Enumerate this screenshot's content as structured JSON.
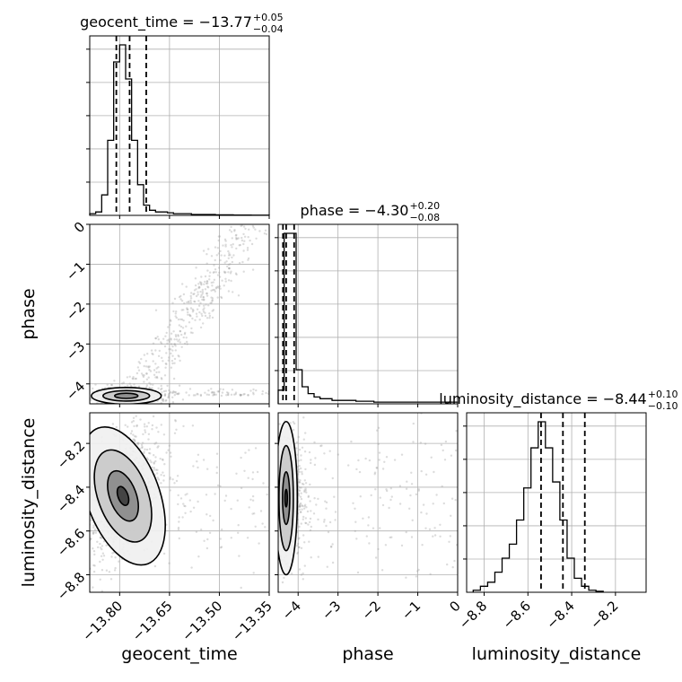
{
  "chart_data": {
    "type": "corner",
    "colors": {
      "line": "#000000",
      "grid": "#b0b0b0",
      "scatter": "#9a9a9a",
      "contour_fill": [
        "#f0f0f0",
        "#c8c8c8",
        "#8a8a8a",
        "#3c3c3c"
      ]
    },
    "parameters": [
      {
        "name": "geocent_time",
        "label": "geocent_time",
        "title": {
          "prefix": "geocent_time = ",
          "value": "−13.77",
          "plus": "+0.05",
          "minus": "−0.04"
        },
        "range": [
          -13.89,
          -13.35
        ],
        "ticks": [
          -13.8,
          -13.65,
          -13.5,
          -13.35
        ],
        "tick_labels": [
          "−13.80",
          "−13.65",
          "−13.50",
          "−13.35"
        ],
        "quantiles": [
          -13.81,
          -13.77,
          -13.72
        ],
        "hist": {
          "edges_start": -13.89,
          "bin_width": 0.018,
          "counts": [
            1,
            2,
            12,
            44,
            90,
            100,
            80,
            44,
            18,
            6,
            3,
            2,
            2,
            1.5,
            1,
            1,
            1,
            0.5,
            0.5,
            0.5,
            0.5,
            0.3,
            0.3,
            0.3,
            0.2,
            0.2,
            0.2,
            0.1,
            0.1,
            0.1
          ]
        }
      },
      {
        "name": "phase",
        "label": "phase",
        "title": {
          "prefix": "phase = ",
          "value": "−4.30",
          "plus": "+0.20",
          "minus": "−0.08"
        },
        "range": [
          -4.5,
          0
        ],
        "ticks": [
          -4,
          -3,
          -2,
          -1,
          0
        ],
        "tick_labels": [
          "−4",
          "−3",
          "−2",
          "−1",
          "0"
        ],
        "quantiles": [
          -4.38,
          -4.3,
          -4.1
        ],
        "hist": {
          "edges_start": -4.5,
          "bin_width": 0.15,
          "counts": [
            8,
            100,
            100,
            20,
            10,
            6,
            4,
            3,
            3,
            2,
            2,
            2,
            2,
            1.5,
            1.5,
            1.5,
            1,
            1,
            1,
            1,
            1,
            1,
            1,
            1,
            1,
            1,
            1,
            1,
            1,
            1
          ]
        }
      },
      {
        "name": "luminosity_distance",
        "label": "luminosity_distance",
        "title": {
          "prefix": "luminosity_distance = ",
          "value": "−8.44",
          "plus": "+0.10",
          "minus": "−0.10"
        },
        "range": [
          -8.88,
          -8.06
        ],
        "ticks": [
          -8.8,
          -8.6,
          -8.4,
          -8.2
        ],
        "tick_labels": [
          "−8.8",
          "−8.6",
          "−8.4",
          "−8.2"
        ],
        "quantiles": [
          -8.54,
          -8.44,
          -8.34
        ],
        "hist": {
          "edges_start": -8.85,
          "bin_width": 0.033,
          "counts": [
            1,
            3,
            5,
            10,
            17,
            24,
            36,
            52,
            72,
            85,
            72,
            55,
            36,
            17,
            7,
            3,
            1,
            0.5
          ]
        }
      }
    ],
    "pairs": [
      {
        "x": "geocent_time",
        "y": "phase",
        "center": [
          -13.78,
          -4.3
        ],
        "spread": [
          0.04,
          0.1
        ],
        "tail": {
          "from": [
            -13.75,
            -4.2
          ],
          "to": [
            -13.4,
            0
          ],
          "width": 0.05
        },
        "levels": [
          {
            "sx": 0.105,
            "sy": 0.21
          },
          {
            "sx": 0.07,
            "sy": 0.13
          },
          {
            "sx": 0.035,
            "sy": 0.065
          }
        ]
      },
      {
        "x": "geocent_time",
        "y": "luminosity_distance",
        "center": [
          -13.79,
          -8.44
        ],
        "spread": [
          0.035,
          0.1
        ],
        "tilt": 0.6,
        "levels": [
          {
            "sx": 0.11,
            "sy": 0.33
          },
          {
            "sx": 0.075,
            "sy": 0.22
          },
          {
            "sx": 0.04,
            "sy": 0.12
          },
          {
            "sx": 0.015,
            "sy": 0.045
          }
        ]
      },
      {
        "x": "phase",
        "y": "luminosity_distance",
        "center": [
          -4.3,
          -8.45
        ],
        "spread": [
          0.15,
          0.1
        ],
        "levels": [
          {
            "sx": 0.28,
            "sy": 0.35
          },
          {
            "sx": 0.18,
            "sy": 0.24
          },
          {
            "sx": 0.09,
            "sy": 0.12
          },
          {
            "sx": 0.03,
            "sy": 0.04
          }
        ]
      }
    ]
  }
}
